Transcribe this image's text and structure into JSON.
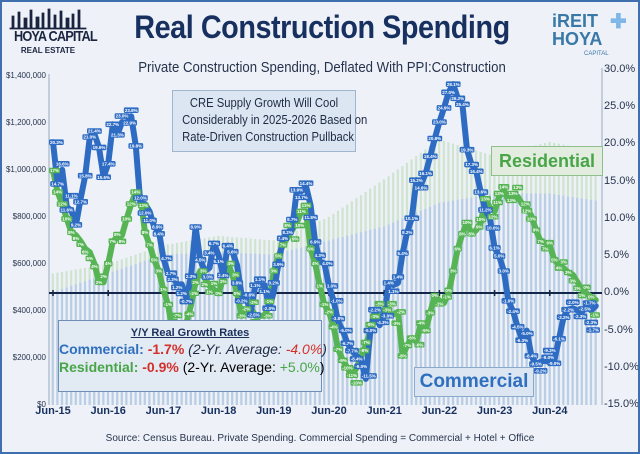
{
  "header": {
    "title": "Real Construction Spending",
    "subtitle": "Private Construction Spending, Deflated With PPI:Construction",
    "logo_left": {
      "name": "HOYA CAPITAL",
      "tagline": "REAL ESTATE"
    },
    "logo_right": {
      "line1": "iREIT",
      "line2": "HOYA",
      "line3": "CAPITAL"
    }
  },
  "annotation": [
    "CRE Supply Growth Will Cool",
    "Considerably in 2025-2026 Based on",
    "Rate-Driven Construction Pullback"
  ],
  "series_labels": {
    "residential": "Residential",
    "commercial": "Commercial"
  },
  "legend": {
    "title": "Y/Y Real Growth Rates",
    "commercial": {
      "label": "Commercial:",
      "value": "-1.7%",
      "avg_prefix": "(2-Yr. Average:",
      "avg_value": "-4.0%",
      "avg_suffix": ")"
    },
    "residential": {
      "label": "Residential:",
      "value": "-0.9%",
      "avg_prefix": "(2-Yr. Average:",
      "avg_value": "+5.0%",
      "avg_suffix": ")"
    }
  },
  "source": "Source: Census Bureau. Private Spending. Commercial Spending = Commercial + Hotel + Office",
  "colors": {
    "commercial": "#2e6cc4",
    "residential": "#56b454",
    "negative": "#d4302b",
    "title": "#17305f",
    "commercial_bars": "#b9cde6",
    "residential_bars": "#cfe3cf"
  },
  "chart_data": {
    "type": "line",
    "title": "Real Construction Spending",
    "subtitle": "Private Construction Spending, Deflated With PPI:Construction",
    "x_tick_labels": [
      "Jun-15",
      "Jun-16",
      "Jun-17",
      "Jun-18",
      "Jun-19",
      "Jun-20",
      "Jun-21",
      "Jun-22",
      "Jun-23",
      "Jun-24"
    ],
    "y_left": {
      "ticks": [
        "$0",
        "$200,000",
        "$400,000",
        "$600,000",
        "$800,000",
        "$1,000,000",
        "$1,200,000",
        "$1,400,000"
      ],
      "range": [
        0,
        1400000
      ]
    },
    "y_right": {
      "ticks": [
        "-15.0%",
        "-10.0%",
        "-5.0%",
        "0.0%",
        "5.0%",
        "10.0%",
        "15.0%",
        "20.0%",
        "25.0%",
        "30.0%"
      ],
      "range": [
        -15,
        30
      ]
    },
    "grid": false,
    "x": [
      "Jun-15",
      "Jul-15",
      "Aug-15",
      "Sep-15",
      "Oct-15",
      "Nov-15",
      "Dec-15",
      "Jan-16",
      "Feb-16",
      "Mar-16",
      "Apr-16",
      "May-16",
      "Jun-16",
      "Jul-16",
      "Aug-16",
      "Sep-16",
      "Oct-16",
      "Nov-16",
      "Dec-16",
      "Jan-17",
      "Feb-17",
      "Mar-17",
      "Apr-17",
      "May-17",
      "Jun-17",
      "Jul-17",
      "Aug-17",
      "Sep-17",
      "Oct-17",
      "Nov-17",
      "Dec-17",
      "Jan-18",
      "Feb-18",
      "Mar-18",
      "Apr-18",
      "May-18",
      "Jun-18",
      "Jul-18",
      "Aug-18",
      "Sep-18",
      "Oct-18",
      "Nov-18",
      "Dec-18",
      "Jan-19",
      "Feb-19",
      "Mar-19",
      "Apr-19",
      "May-19",
      "Jun-19",
      "Jul-19",
      "Aug-19",
      "Sep-19",
      "Oct-19",
      "Nov-19",
      "Dec-19",
      "Jan-20",
      "Feb-20",
      "Mar-20",
      "Apr-20",
      "May-20",
      "Jun-20",
      "Jul-20",
      "Aug-20",
      "Sep-20",
      "Oct-20",
      "Nov-20",
      "Dec-20",
      "Jan-21",
      "Feb-21",
      "Mar-21",
      "Apr-21",
      "May-21",
      "Jun-21",
      "Jul-21",
      "Aug-21",
      "Sep-21",
      "Oct-21",
      "Nov-21",
      "Dec-21",
      "Jan-22",
      "Feb-22",
      "Mar-22",
      "Apr-22",
      "May-22",
      "Jun-22",
      "Jul-22",
      "Aug-22",
      "Sep-22",
      "Oct-22",
      "Nov-22",
      "Dec-22",
      "Jan-23",
      "Feb-23",
      "Mar-23",
      "Apr-23",
      "May-23",
      "Jun-23",
      "Jul-23",
      "Aug-23",
      "Sep-23",
      "Oct-23",
      "Nov-23",
      "Dec-23",
      "Jan-24",
      "Feb-24",
      "Mar-24",
      "Apr-24",
      "May-24",
      "Jun-24",
      "Jul-24",
      "Aug-24",
      "Sep-24",
      "Oct-24",
      "Nov-24",
      "Dec-24",
      "Jan-25",
      "Feb-25",
      "Mar-25",
      "Apr-25"
    ],
    "series": [
      {
        "name": "Commercial",
        "axis": "right",
        "unit": "%",
        "values": [
          20.3,
          14.7,
          16.6,
          11.6,
          11.1,
          9.2,
          12.7,
          15.8,
          21.0,
          21.4,
          19.6,
          15.6,
          17.4,
          22.7,
          21.3,
          23.0,
          22.9,
          23.8,
          19.8,
          12.0,
          12.0,
          11.0,
          8.9,
          8.4,
          4.7,
          2.7,
          2.3,
          1.2,
          1.2,
          -0.7,
          2.3,
          8.9,
          4.5,
          3.0,
          3.4,
          6.7,
          5.1,
          2.4,
          6.4,
          5.6,
          3.8,
          -0.2,
          -0.6,
          -2.5,
          1.1,
          1.1,
          1.1,
          -2.0,
          0.2,
          3.9,
          7.4,
          8.2,
          8.7,
          13.9,
          13.7,
          14.4,
          11.8,
          6.9,
          4.3,
          4.0,
          1.0,
          -1.0,
          -3.8,
          -5.0,
          -6.7,
          -7.7,
          -8.4,
          -9.0,
          -11.5,
          -5.0,
          -2.2,
          -4.3,
          -3.0,
          1.4,
          1.1,
          1.4,
          5.4,
          8.2,
          10.1,
          15.2,
          14.6,
          16.1,
          18.4,
          20.8,
          23.0,
          24.9,
          27.0,
          28.1,
          26.2,
          25.4,
          19.3,
          17.3,
          16.4,
          13.6,
          11.2,
          10.0,
          6.1,
          5.0,
          3.0,
          -1.0,
          -2.4,
          -4.5,
          -6.3,
          -5.0,
          -8.4,
          -9.5,
          -9.2,
          -9.0,
          -9.3,
          -9.0,
          -6.1,
          -3.2,
          -2.2,
          -2.0,
          -2.3,
          -2.5,
          -1.7,
          -2.3,
          -1.7
        ]
      },
      {
        "name": "Residential",
        "axis": "right",
        "unit": "%",
        "values": [
          16.5,
          13.6,
          12.0,
          10.0,
          8.2,
          7.8,
          7.0,
          6.0,
          5.5,
          4.0,
          1.5,
          1.5,
          4.0,
          7.0,
          7.5,
          7.8,
          10.0,
          12.0,
          13.6,
          13.0,
          8.2,
          6.5,
          4.5,
          3.0,
          0.5,
          -1.5,
          -5.0,
          -7.0,
          -6.0,
          -4.0,
          -1.6,
          1.5,
          3.0,
          2.0,
          1.0,
          0.5,
          0.0,
          2.0,
          4.0,
          2.5,
          0.0,
          -3.0,
          -2.5,
          -2.0,
          -3.0,
          -3.0,
          -3.0,
          -1.5,
          3.0,
          5.0,
          6.5,
          7.5,
          8.5,
          9.5,
          11.0,
          11.0,
          6.0,
          4.0,
          1.0,
          -1.5,
          -2.5,
          -4.5,
          -7.5,
          -9.0,
          -10.0,
          -11.0,
          -10.0,
          -8.5,
          -7.0,
          -5.0,
          -3.5,
          -2.6,
          -3.0,
          -3.0,
          -2.8,
          -2.5,
          -8.4,
          -7.0,
          -6.0,
          -6.5,
          -4.0,
          -5.0,
          -2.6,
          -0.3,
          -1.0,
          -1.3,
          0.0,
          3.0,
          6.0,
          8.0,
          9.5,
          8.0,
          8.5,
          9.5,
          12.7,
          11.5,
          11.0,
          13.0,
          13.9,
          12.5,
          13.0,
          13.0,
          12.0,
          11.5,
          10.4,
          8.5,
          7.0,
          6.8,
          6.4,
          4.5,
          3.8,
          3.4,
          2.8,
          2.5,
          1.5,
          0.5,
          0.0,
          -0.5,
          -0.9
        ]
      }
    ],
    "bar_series": [
      {
        "name": "Residential",
        "axis": "left",
        "unit": "$",
        "points": [
          {
            "x": "Jun-15",
            "y": 560000
          },
          {
            "x": "Jun-16",
            "y": 600000
          },
          {
            "x": "Jun-17",
            "y": 680000
          },
          {
            "x": "Jun-18",
            "y": 720000
          },
          {
            "x": "Jun-19",
            "y": 700000
          },
          {
            "x": "Jun-20",
            "y": 800000
          },
          {
            "x": "Jun-21",
            "y": 960000
          },
          {
            "x": "Jun-22",
            "y": 1130000
          },
          {
            "x": "Jun-23",
            "y": 1060000
          },
          {
            "x": "Jun-24",
            "y": 1120000
          },
          {
            "x": "Apr-25",
            "y": 1080000
          }
        ]
      },
      {
        "name": "Commercial",
        "axis": "left",
        "unit": "$",
        "points": [
          {
            "x": "Jun-15",
            "y": 480000
          },
          {
            "x": "Jun-16",
            "y": 560000
          },
          {
            "x": "Jun-17",
            "y": 640000
          },
          {
            "x": "Jun-18",
            "y": 650000
          },
          {
            "x": "Jun-19",
            "y": 640000
          },
          {
            "x": "Jun-20",
            "y": 700000
          },
          {
            "x": "Jun-21",
            "y": 760000
          },
          {
            "x": "Jun-22",
            "y": 860000
          },
          {
            "x": "Jun-23",
            "y": 900000
          },
          {
            "x": "Jun-24",
            "y": 900000
          },
          {
            "x": "Apr-25",
            "y": 870000
          }
        ]
      }
    ]
  }
}
